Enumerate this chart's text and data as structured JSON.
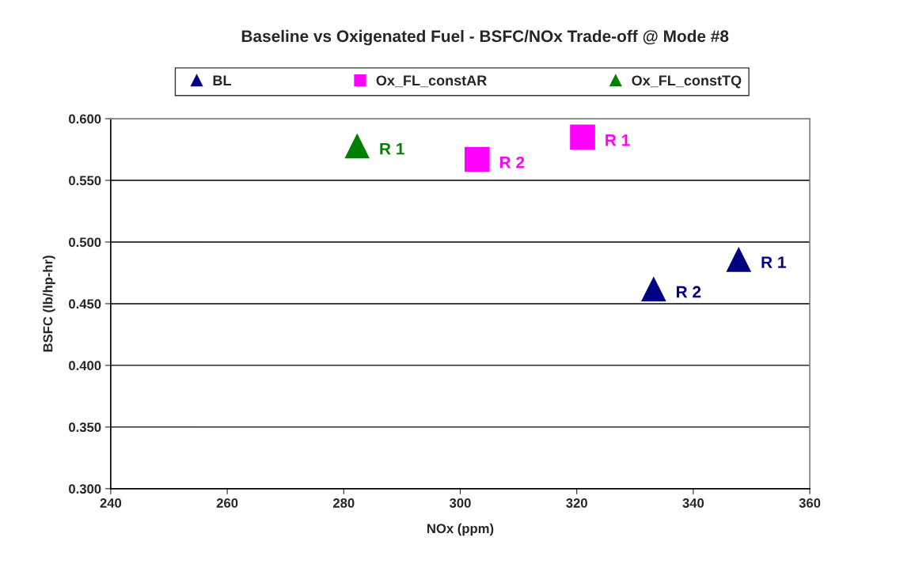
{
  "chart_data": {
    "type": "scatter",
    "title": "Baseline vs Oxigenated Fuel - BSFC/NOx Trade-off @ Mode #8",
    "xlabel": "NOx (ppm)",
    "ylabel": "BSFC (lb/hp-hr)",
    "series": [
      {
        "name": "BL",
        "color": "#000080",
        "marker": "triangle",
        "x": [
          347.8,
          333.2
        ],
        "values": [
          0.486,
          0.462
        ]
      },
      {
        "name": "Ox_FL_constAR",
        "color": "#ff00ff",
        "marker": "square",
        "x": [
          321.0,
          302.9
        ],
        "values": [
          0.585,
          0.567
        ]
      },
      {
        "name": "Ox_FL_constTQ",
        "color": "#008000",
        "marker": "triangle",
        "x": [
          282.3
        ],
        "values": [
          0.578
        ]
      }
    ],
    "annotations": [
      {
        "text": "R 1",
        "x": 347.8,
        "y": 0.486
      },
      {
        "text": "R 2",
        "x": 333.2,
        "y": 0.462
      },
      {
        "text": "R 1",
        "x": 321.0,
        "y": 0.585
      },
      {
        "text": "R 2",
        "x": 302.9,
        "y": 0.567
      },
      {
        "text": "R 1",
        "x": 282.3,
        "y": 0.578
      }
    ],
    "xlim": [
      240,
      360
    ],
    "xticks": [
      240,
      260,
      280,
      300,
      320,
      340,
      360
    ],
    "ylim": [
      0.3,
      0.6
    ],
    "yticks": [
      {
        "value": 0.3,
        "label": "0.300"
      },
      {
        "value": 0.35,
        "label": "0.350"
      },
      {
        "value": 0.4,
        "label": "0.400"
      },
      {
        "value": 0.45,
        "label": "0.450"
      },
      {
        "value": 0.5,
        "label": "0.500"
      },
      {
        "value": 0.55,
        "label": "0.550"
      },
      {
        "value": 0.6,
        "label": "0.600"
      }
    ],
    "grid": "y",
    "legend": "top"
  }
}
